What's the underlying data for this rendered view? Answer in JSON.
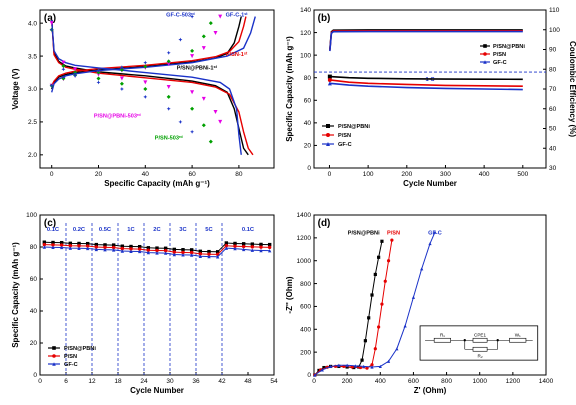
{
  "colors": {
    "black": "#000000",
    "red": "#e60000",
    "blue": "#1a32c8",
    "magenta": "#e600e6",
    "green": "#00a000"
  },
  "chart_data": [
    {
      "panel": "(a)",
      "type": "line",
      "xlabel": "Specific Capacity (mAh g⁻¹)",
      "ylabel": "Voltage (V)",
      "xlim": [
        -5,
        95
      ],
      "ylim": [
        1.8,
        4.2
      ],
      "xticks": [
        0,
        20,
        40,
        60,
        80
      ],
      "yticks": [
        2.0,
        2.5,
        3.0,
        3.5,
        4.0
      ],
      "grid": false,
      "annotations": [
        {
          "text": "GF-C-503ʳᵈ",
          "x": 55,
          "y": 4.1,
          "color": "#1a32c8"
        },
        {
          "text": "GF-C-1ˢᵗ",
          "x": 79,
          "y": 4.1,
          "color": "#1a32c8"
        },
        {
          "text": "P/SN-1ˢᵗ",
          "x": 79,
          "y": 3.5,
          "color": "#e60000"
        },
        {
          "text": "P/SN@PBNi-1ˢᵗ",
          "x": 62,
          "y": 3.3,
          "color": "#000000"
        },
        {
          "text": "P/SN@PBNi-503ʳᵈ",
          "x": 28,
          "y": 2.57,
          "color": "#e600e6"
        },
        {
          "text": "P/SN-503ʳᵈ",
          "x": 50,
          "y": 2.23,
          "color": "#00a000"
        }
      ],
      "series": [
        {
          "key": "P/SN@PBNi-1st charge",
          "color": "#000000",
          "x": [
            0,
            1,
            3,
            6,
            10,
            20,
            40,
            60,
            70,
            75,
            78,
            80,
            81
          ],
          "y": [
            3.0,
            3.1,
            3.18,
            3.22,
            3.25,
            3.29,
            3.34,
            3.41,
            3.47,
            3.54,
            3.7,
            3.95,
            4.1
          ]
        },
        {
          "key": "P/SN@PBNi-1st discharge",
          "color": "#000000",
          "x": [
            0,
            1,
            3,
            6,
            10,
            20,
            40,
            60,
            70,
            75,
            78,
            80,
            82,
            84
          ],
          "y": [
            4.05,
            3.55,
            3.42,
            3.35,
            3.32,
            3.26,
            3.2,
            3.12,
            3.05,
            2.95,
            2.7,
            2.4,
            2.1,
            2.0
          ]
        },
        {
          "key": "P/SN-1st charge",
          "color": "#e60000",
          "x": [
            0,
            1,
            3,
            6,
            10,
            20,
            40,
            60,
            70,
            76,
            80,
            82,
            83
          ],
          "y": [
            3.05,
            3.12,
            3.2,
            3.24,
            3.27,
            3.31,
            3.36,
            3.43,
            3.49,
            3.57,
            3.72,
            3.95,
            4.1
          ]
        },
        {
          "key": "P/SN-1st discharge",
          "color": "#e60000",
          "x": [
            0,
            1,
            3,
            6,
            10,
            20,
            40,
            60,
            70,
            76,
            80,
            82,
            84,
            86
          ],
          "y": [
            4.05,
            3.52,
            3.4,
            3.33,
            3.3,
            3.24,
            3.17,
            3.1,
            3.03,
            2.92,
            2.65,
            2.35,
            2.1,
            2.0
          ]
        },
        {
          "key": "GF-C-1st charge",
          "color": "#1a32c8",
          "x": [
            0,
            1,
            3,
            6,
            10,
            20,
            40,
            60,
            75,
            82,
            85,
            87
          ],
          "y": [
            2.95,
            3.08,
            3.15,
            3.2,
            3.23,
            3.28,
            3.33,
            3.4,
            3.5,
            3.62,
            3.85,
            4.1
          ]
        },
        {
          "key": "GF-C-1st discharge",
          "color": "#1a32c8",
          "x": [
            0,
            1,
            3,
            6,
            10,
            20,
            40,
            60,
            72,
            76,
            79,
            80,
            81
          ],
          "y": [
            4.05,
            3.58,
            3.46,
            3.4,
            3.36,
            3.32,
            3.25,
            3.18,
            3.1,
            3.0,
            2.7,
            2.3,
            2.0
          ]
        },
        {
          "key": "P/SN@PBNi-503rd",
          "color": "#e600e6",
          "marker": "triangle-down",
          "x": [
            0,
            5,
            10,
            20,
            30,
            40,
            50,
            60,
            65,
            70,
            72
          ],
          "y": [
            3.05,
            3.15,
            3.2,
            3.24,
            3.28,
            3.32,
            3.38,
            3.5,
            3.62,
            3.85,
            4.1
          ],
          "x2": [
            0,
            5,
            10,
            20,
            30,
            40,
            50,
            60,
            65,
            70,
            72
          ],
          "y2": [
            4.0,
            3.4,
            3.3,
            3.22,
            3.16,
            3.1,
            3.03,
            2.95,
            2.85,
            2.65,
            2.5
          ]
        },
        {
          "key": "P/SN-503rd",
          "color": "#00a000",
          "marker": "diamond",
          "x": [
            0,
            5,
            10,
            20,
            30,
            40,
            50,
            60,
            65,
            68
          ],
          "y": [
            3.05,
            3.16,
            3.21,
            3.25,
            3.29,
            3.34,
            3.42,
            3.58,
            3.8,
            4.0
          ],
          "x2": [
            0,
            5,
            10,
            20,
            30,
            40,
            50,
            60,
            65,
            68
          ],
          "y2": [
            3.9,
            3.35,
            3.25,
            3.16,
            3.08,
            3.0,
            2.88,
            2.7,
            2.45,
            2.2
          ]
        },
        {
          "key": "GF-C-503rd",
          "color": "#1a32c8",
          "marker": "star",
          "x": [
            0,
            5,
            10,
            20,
            30,
            40,
            50,
            55,
            60
          ],
          "y": [
            3.05,
            3.18,
            3.23,
            3.28,
            3.33,
            3.4,
            3.55,
            3.75,
            4.1
          ],
          "x2": [
            0,
            5,
            10,
            20,
            30,
            40,
            50,
            55,
            60
          ],
          "y2": [
            3.9,
            3.3,
            3.2,
            3.1,
            3.0,
            2.88,
            2.7,
            2.5,
            2.35
          ]
        }
      ]
    },
    {
      "panel": "(b)",
      "type": "scatter",
      "xlabel": "Cycle Number",
      "ylabel": "Specific Capacity (mAh g⁻¹)",
      "ylabel2": "Coulombic Efficiency (%)",
      "xlim": [
        -40,
        560
      ],
      "ylim": [
        0,
        140
      ],
      "ylim2": [
        30,
        110
      ],
      "xticks": [
        0,
        100,
        200,
        300,
        400,
        500
      ],
      "yticks": [
        0,
        20,
        40,
        60,
        80,
        100,
        120,
        140
      ],
      "yticks2": [
        30,
        40,
        50,
        60,
        70,
        80,
        90,
        100,
        110
      ],
      "rate_label": "1 C",
      "dashed_line_y": 85,
      "legend_top": [
        "P/SN@PBNi",
        "P/SN",
        "GF-C"
      ],
      "legend_bottom": [
        "P/SN@PBNi",
        "P/SN",
        "GF-C"
      ],
      "series": [
        {
          "name": "P/SN@PBNi",
          "color": "#000000",
          "marker": "square",
          "x": [
            1,
            50,
            100,
            200,
            300,
            400,
            500
          ],
          "y": [
            81,
            80,
            79.5,
            79,
            78.8,
            78.7,
            78.6
          ]
        },
        {
          "name": "P/SN",
          "color": "#e60000",
          "marker": "circle",
          "x": [
            1,
            50,
            100,
            200,
            300,
            400,
            500
          ],
          "y": [
            78,
            76,
            75,
            74,
            73.2,
            72.8,
            72.5
          ]
        },
        {
          "name": "GF-C",
          "color": "#1a32c8",
          "marker": "triangle",
          "x": [
            1,
            50,
            100,
            200,
            300,
            400,
            500
          ],
          "y": [
            75,
            73.5,
            72.5,
            71.3,
            70.5,
            70,
            69.5
          ]
        }
      ],
      "efficiency": {
        "x": [
          1,
          5,
          10,
          100,
          200,
          300,
          400,
          500
        ],
        "y": [
          90,
          99,
          99.8,
          99.9,
          99.9,
          99.9,
          99.9,
          99.9
        ]
      }
    },
    {
      "panel": "(c)",
      "type": "scatter",
      "xlabel": "Cycle Number",
      "ylabel": "Specific Capacity (mAh g⁻¹)",
      "xlim": [
        0,
        54
      ],
      "ylim": [
        0,
        100
      ],
      "xticks": [
        0,
        6,
        12,
        18,
        24,
        30,
        36,
        42,
        48,
        54
      ],
      "yticks": [
        0,
        20,
        40,
        60,
        80,
        100
      ],
      "rates": [
        "0.1C",
        "0.2C",
        "0.5C",
        "1C",
        "2C",
        "3C",
        "5C",
        "0.1C"
      ],
      "rate_boundaries": [
        6,
        12,
        18,
        24,
        30,
        36,
        42
      ],
      "legend": [
        "P/SN@PBNi",
        "P/SN",
        "GF-C"
      ],
      "series": [
        {
          "name": "P/SN@PBNi",
          "color": "#000000",
          "marker": "square",
          "x": [
            1,
            3,
            5,
            7,
            9,
            11,
            13,
            15,
            17,
            19,
            21,
            23,
            25,
            27,
            29,
            31,
            33,
            35,
            37,
            39,
            41,
            43,
            45,
            47,
            49,
            51,
            53
          ],
          "y": [
            83,
            82.8,
            82.7,
            82.3,
            82.2,
            82.1,
            81.5,
            81.3,
            81.2,
            80.5,
            80.3,
            80.2,
            79.5,
            79.3,
            79.2,
            78.5,
            78.3,
            78.2,
            77.3,
            77.1,
            77.0,
            82.5,
            82.2,
            82.0,
            81.8,
            81.6,
            81.5
          ]
        },
        {
          "name": "P/SN",
          "color": "#e60000",
          "marker": "circle",
          "x": [
            1,
            3,
            5,
            7,
            9,
            11,
            13,
            15,
            17,
            19,
            21,
            23,
            25,
            27,
            29,
            31,
            33,
            35,
            37,
            39,
            41,
            43,
            45,
            47,
            49,
            51,
            53
          ],
          "y": [
            81.5,
            81.3,
            81.2,
            80.8,
            80.7,
            80.6,
            80.0,
            79.8,
            79.7,
            79.0,
            78.8,
            78.7,
            78.0,
            77.8,
            77.7,
            76.8,
            76.6,
            76.5,
            75.7,
            75.5,
            75.4,
            80.8,
            80.5,
            80.3,
            80.1,
            79.9,
            79.8
          ]
        },
        {
          "name": "GF-C",
          "color": "#1a32c8",
          "marker": "triangle",
          "x": [
            1,
            3,
            5,
            7,
            9,
            11,
            13,
            15,
            17,
            19,
            21,
            23,
            25,
            27,
            29,
            31,
            33,
            35,
            37,
            39,
            41,
            43,
            45,
            47,
            49,
            51,
            53
          ],
          "y": [
            80.0,
            79.8,
            79.7,
            79.3,
            79.2,
            79.1,
            78.5,
            78.3,
            78.2,
            77.5,
            77.3,
            77.2,
            76.5,
            76.3,
            76.2,
            75.3,
            75.1,
            75.0,
            74.2,
            74.0,
            73.9,
            79.3,
            79.0,
            78.5,
            78.0,
            77.8,
            77.7
          ]
        }
      ]
    },
    {
      "panel": "(d)",
      "type": "scatter",
      "xlabel": "Z' (Ohm)",
      "ylabel": "-Z'' (Ohm)",
      "xlim": [
        0,
        1400
      ],
      "ylim": [
        0,
        1400
      ],
      "xticks": [
        0,
        200,
        400,
        600,
        800,
        1000,
        1200,
        1400
      ],
      "yticks": [
        0,
        200,
        400,
        600,
        800,
        1000,
        1200,
        1400
      ],
      "legend_labels": [
        {
          "text": "P/SN@PBNi",
          "color": "#000000"
        },
        {
          "text": "P/SN",
          "color": "#e60000"
        },
        {
          "text": "GF-C",
          "color": "#1a32c8"
        }
      ],
      "circuit": {
        "r1": "R₁",
        "cpe": "CPE1",
        "r2": "R₂",
        "w": "W₁"
      },
      "series": [
        {
          "name": "P/SN@PBNi",
          "color": "#000000",
          "marker": "square",
          "x": [
            5,
            30,
            60,
            100,
            150,
            200,
            240,
            270,
            290,
            310,
            330,
            350,
            370,
            390,
            410
          ],
          "y": [
            0,
            40,
            65,
            75,
            75,
            70,
            65,
            70,
            130,
            300,
            500,
            700,
            880,
            1030,
            1170
          ]
        },
        {
          "name": "P/SN",
          "color": "#e60000",
          "marker": "circle",
          "x": [
            5,
            40,
            80,
            130,
            180,
            230,
            280,
            320,
            350,
            370,
            390,
            410,
            430,
            450,
            470
          ],
          "y": [
            0,
            45,
            68,
            76,
            75,
            70,
            65,
            60,
            90,
            230,
            420,
            620,
            820,
            1000,
            1180
          ]
        },
        {
          "name": "GF-C",
          "color": "#1a32c8",
          "marker": "triangle",
          "x": [
            5,
            50,
            100,
            150,
            200,
            250,
            300,
            350,
            400,
            450,
            500,
            550,
            600,
            650,
            700,
            730
          ],
          "y": [
            0,
            45,
            75,
            85,
            85,
            80,
            75,
            70,
            75,
            120,
            230,
            430,
            680,
            930,
            1150,
            1250
          ]
        }
      ]
    }
  ]
}
